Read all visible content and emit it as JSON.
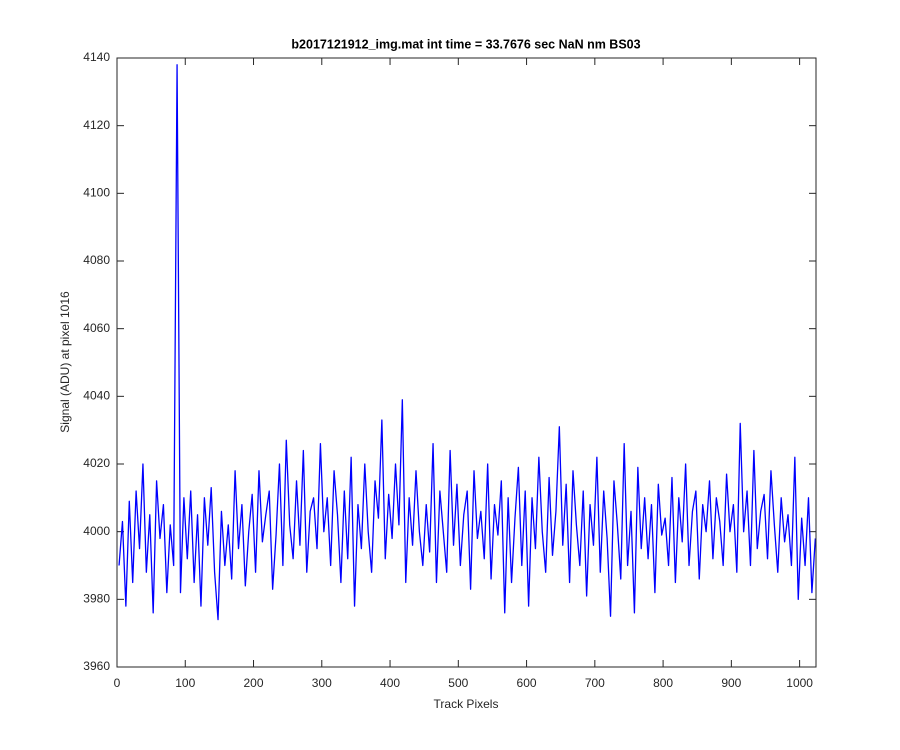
{
  "chart_data": {
    "type": "line",
    "title": "b2017121912_img.mat int time = 33.7676 sec  NaN nm BS03",
    "xlabel": "Track Pixels",
    "ylabel": "Signal (ADU) at pixel 1016",
    "color": "#0000ff",
    "xlim": [
      0,
      1024
    ],
    "xticks": [
      0,
      100,
      200,
      300,
      400,
      500,
      600,
      700,
      800,
      900,
      1000
    ],
    "ylim": [
      3960,
      4140
    ],
    "yticks": [
      3960,
      3980,
      4000,
      4020,
      4040,
      4060,
      4080,
      4100,
      4120,
      4140
    ],
    "x": [
      3,
      8,
      13,
      18,
      23,
      28,
      33,
      38,
      43,
      48,
      53,
      58,
      63,
      68,
      73,
      78,
      83,
      88,
      93,
      98,
      103,
      108,
      113,
      118,
      123,
      128,
      133,
      138,
      143,
      148,
      153,
      158,
      163,
      168,
      173,
      178,
      183,
      188,
      193,
      198,
      203,
      208,
      213,
      218,
      223,
      228,
      233,
      238,
      243,
      248,
      253,
      258,
      263,
      268,
      273,
      278,
      283,
      288,
      293,
      298,
      303,
      308,
      313,
      318,
      323,
      328,
      333,
      338,
      343,
      348,
      353,
      358,
      363,
      368,
      373,
      378,
      383,
      388,
      393,
      398,
      403,
      408,
      413,
      418,
      423,
      428,
      433,
      438,
      443,
      448,
      453,
      458,
      463,
      468,
      473,
      478,
      483,
      488,
      493,
      498,
      503,
      508,
      513,
      518,
      523,
      528,
      533,
      538,
      543,
      548,
      553,
      558,
      563,
      568,
      573,
      578,
      583,
      588,
      593,
      598,
      603,
      608,
      613,
      618,
      623,
      628,
      633,
      638,
      643,
      648,
      653,
      658,
      663,
      668,
      673,
      678,
      683,
      688,
      693,
      698,
      703,
      708,
      713,
      718,
      723,
      728,
      733,
      738,
      743,
      748,
      753,
      758,
      763,
      768,
      773,
      778,
      783,
      788,
      793,
      798,
      803,
      808,
      813,
      818,
      823,
      828,
      833,
      838,
      843,
      848,
      853,
      858,
      863,
      868,
      873,
      878,
      883,
      888,
      893,
      898,
      903,
      908,
      913,
      918,
      923,
      928,
      933,
      938,
      943,
      948,
      953,
      958,
      963,
      968,
      973,
      978,
      983,
      988,
      993,
      998,
      1003,
      1008,
      1013,
      1018,
      1023
    ],
    "values": [
      3990,
      4003,
      3978,
      4009,
      3985,
      4012,
      3995,
      4020,
      3988,
      4005,
      3976,
      4015,
      3998,
      4008,
      3982,
      4002,
      3990,
      4138,
      3982,
      4010,
      3992,
      4012,
      3985,
      4005,
      3978,
      4010,
      3996,
      4013,
      3988,
      3974,
      4006,
      3990,
      4002,
      3986,
      4018,
      3995,
      4008,
      3984,
      4000,
      4011,
      3988,
      4018,
      3997,
      4005,
      4012,
      3983,
      3999,
      4020,
      3990,
      4027,
      4002,
      3992,
      4015,
      3996,
      4024,
      3988,
      4006,
      4010,
      3995,
      4026,
      4000,
      4010,
      3990,
      4018,
      4005,
      3985,
      4012,
      3992,
      4022,
      3978,
      4008,
      3995,
      4020,
      4000,
      3988,
      4015,
      4004,
      4033,
      3992,
      4011,
      3998,
      4020,
      4002,
      4039,
      3985,
      4010,
      3996,
      4018,
      4000,
      3990,
      4008,
      3994,
      4026,
      3985,
      4012,
      4000,
      3988,
      4024,
      3996,
      4014,
      3990,
      4005,
      4012,
      3983,
      4018,
      3998,
      4006,
      3992,
      4020,
      3986,
      4008,
      3999,
      4015,
      3976,
      4010,
      3985,
      4004,
      4019,
      3990,
      4012,
      3978,
      4010,
      3995,
      4022,
      4000,
      3988,
      4016,
      3993,
      4006,
      4031,
      3996,
      4014,
      3985,
      4018,
      4002,
      3990,
      4012,
      3981,
      4008,
      3996,
      4022,
      3988,
      4012,
      3998,
      3975,
      4015,
      4002,
      3986,
      4026,
      3990,
      4006,
      3976,
      4019,
      3995,
      4010,
      3992,
      4008,
      3982,
      4014,
      3999,
      4004,
      3990,
      4016,
      3985,
      4010,
      3997,
      4020,
      3990,
      4006,
      4012,
      3986,
      4008,
      4000,
      4015,
      3992,
      4010,
      4003,
      3990,
      4017,
      4000,
      4008,
      3988,
      4032,
      4000,
      4012,
      3990,
      4024,
      3995,
      4006,
      4011,
      3992,
      4018,
      4002,
      3988,
      4010,
      3997,
      4005,
      3990,
      4022,
      3980,
      4004,
      3990,
      4010,
      3982,
      3998
    ]
  }
}
